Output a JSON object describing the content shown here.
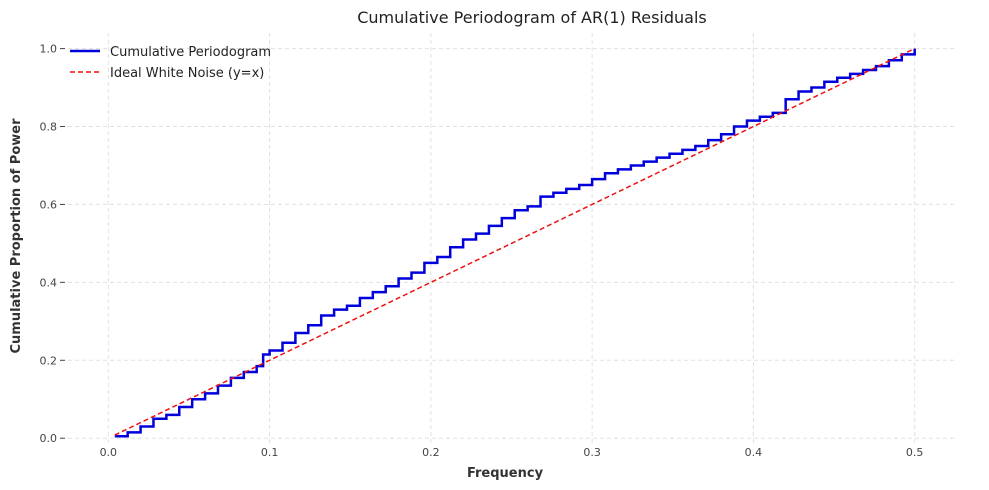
{
  "chart_data": {
    "type": "line",
    "title": "Cumulative Periodogram of AR(1) Residuals",
    "xlabel": "Frequency",
    "ylabel": "Cumulative Proportion of Power",
    "xlim": [
      -0.025,
      0.525
    ],
    "ylim": [
      -0.02,
      1.04
    ],
    "xticks": [
      0.0,
      0.1,
      0.2,
      0.3,
      0.4,
      0.5
    ],
    "xtick_labels": [
      "0.0",
      "0.1",
      "0.2",
      "0.3",
      "0.4",
      "0.5"
    ],
    "yticks": [
      0.0,
      0.2,
      0.4,
      0.6,
      0.8,
      1.0
    ],
    "ytick_labels": [
      "0.0",
      "0.2",
      "0.4",
      "0.6",
      "0.8",
      "1.0"
    ],
    "grid": true,
    "legend_position": "top-left",
    "series": [
      {
        "name": "Cumulative Periodogram",
        "style": "step",
        "color": "#0000dd",
        "x": [
          0.004,
          0.012,
          0.02,
          0.028,
          0.036,
          0.044,
          0.052,
          0.06,
          0.068,
          0.076,
          0.084,
          0.092,
          0.096,
          0.1,
          0.108,
          0.116,
          0.124,
          0.132,
          0.14,
          0.148,
          0.156,
          0.164,
          0.172,
          0.18,
          0.188,
          0.196,
          0.204,
          0.212,
          0.22,
          0.228,
          0.236,
          0.244,
          0.252,
          0.26,
          0.268,
          0.276,
          0.284,
          0.292,
          0.3,
          0.308,
          0.316,
          0.324,
          0.332,
          0.34,
          0.348,
          0.356,
          0.364,
          0.372,
          0.38,
          0.388,
          0.396,
          0.404,
          0.412,
          0.42,
          0.428,
          0.436,
          0.444,
          0.452,
          0.46,
          0.468,
          0.476,
          0.484,
          0.492,
          0.5
        ],
        "y": [
          0.005,
          0.015,
          0.03,
          0.05,
          0.06,
          0.08,
          0.1,
          0.115,
          0.135,
          0.155,
          0.17,
          0.185,
          0.215,
          0.225,
          0.245,
          0.27,
          0.29,
          0.315,
          0.33,
          0.34,
          0.36,
          0.375,
          0.39,
          0.41,
          0.425,
          0.45,
          0.465,
          0.49,
          0.51,
          0.525,
          0.545,
          0.565,
          0.585,
          0.595,
          0.62,
          0.63,
          0.64,
          0.65,
          0.665,
          0.68,
          0.69,
          0.7,
          0.71,
          0.72,
          0.73,
          0.74,
          0.75,
          0.765,
          0.78,
          0.8,
          0.815,
          0.825,
          0.835,
          0.87,
          0.89,
          0.9,
          0.915,
          0.925,
          0.935,
          0.945,
          0.955,
          0.97,
          0.985,
          1.0
        ]
      },
      {
        "name": "Ideal White Noise (y=x)",
        "style": "dashed",
        "color": "#ee1111",
        "x": [
          0.004,
          0.5
        ],
        "y": [
          0.008,
          1.0
        ]
      }
    ]
  }
}
